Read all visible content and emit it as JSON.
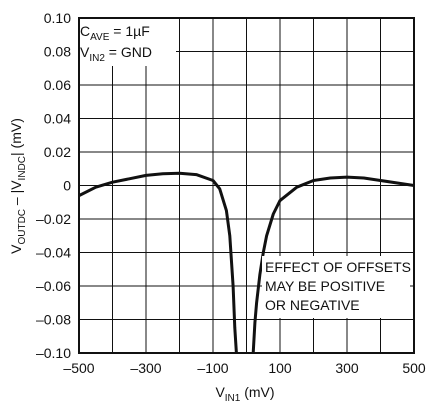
{
  "chart_data": {
    "type": "line",
    "xlabel": {
      "main": "V",
      "sub": "IN1",
      "unit": " (mV)"
    },
    "ylabel": {
      "main": "V",
      "sub1": "OUTDC",
      "mid": " – |V",
      "sub2": "INDC",
      "end": "| (mV)"
    },
    "xlim": [
      -500,
      500
    ],
    "ylim": [
      -0.1,
      0.1
    ],
    "x_ticks": [
      -500,
      -400,
      -300,
      -200,
      -100,
      0,
      100,
      200,
      300,
      400,
      500
    ],
    "x_tick_labels": [
      "–500",
      "",
      "–300",
      "",
      "–100",
      "",
      "100",
      "",
      "300",
      "",
      "500"
    ],
    "y_ticks": [
      0.1,
      0.08,
      0.06,
      0.04,
      0.02,
      0,
      -0.02,
      -0.04,
      -0.06,
      -0.08,
      -0.1
    ],
    "y_tick_labels": [
      "0.10",
      "0.08",
      "0.06",
      "0.04",
      "0.02",
      "0",
      "–0.02",
      "–0.04",
      "–0.06",
      "–0.08",
      "–0.10"
    ],
    "grid": true,
    "conditions": [
      {
        "main": "C",
        "sub": "AVE",
        "rest": " = 1µF"
      },
      {
        "main": "V",
        "sub": "IN2",
        "rest": " = GND"
      }
    ],
    "annotation": [
      "EFFECT OF OFFSETS",
      "MAY BE POSITIVE",
      "OR NEGATIVE"
    ],
    "series": [
      {
        "x": [
          -500,
          -450,
          -400,
          -350,
          -300,
          -250,
          -200,
          -150,
          -100,
          -80,
          -60,
          -50,
          -40,
          -35,
          -30
        ],
        "y": [
          -0.006,
          -0.001,
          0.002,
          0.004,
          0.006,
          0.007,
          0.0073,
          0.0065,
          0.003,
          -0.002,
          -0.015,
          -0.03,
          -0.06,
          -0.085,
          -0.1
        ]
      },
      {
        "x": [
          20,
          25,
          30,
          40,
          50,
          60,
          80,
          100,
          150,
          200,
          250,
          300,
          350,
          400,
          450,
          500
        ],
        "y": [
          -0.1,
          -0.082,
          -0.07,
          -0.053,
          -0.04,
          -0.03,
          -0.017,
          -0.009,
          -0.001,
          0.003,
          0.0045,
          0.005,
          0.0045,
          0.003,
          0.0015,
          0.0
        ]
      }
    ]
  }
}
